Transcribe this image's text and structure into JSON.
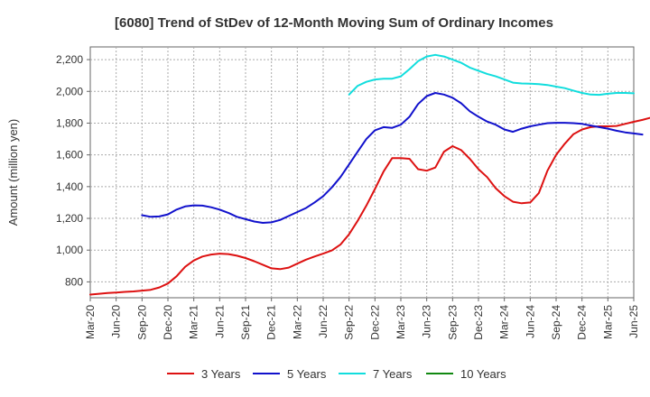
{
  "chart_data": {
    "type": "line",
    "title": "[6080]  Trend of StDev of 12-Month Moving Sum of Ordinary Incomes",
    "xlabel": "",
    "ylabel": "Amount (million yen)",
    "ylim": [
      700,
      2280
    ],
    "yticks": [
      800,
      1000,
      1200,
      1400,
      1600,
      1800,
      2000,
      2200
    ],
    "ytick_labels": [
      "800",
      "1,000",
      "1,200",
      "1,400",
      "1,600",
      "1,800",
      "2,000",
      "2,200"
    ],
    "x_start": "Mar-20",
    "x_end": "Jun-25",
    "xtick_labels": [
      "Mar-20",
      "Jun-20",
      "Sep-20",
      "Dec-20",
      "Mar-21",
      "Jun-21",
      "Sep-21",
      "Dec-21",
      "Mar-22",
      "Jun-22",
      "Sep-22",
      "Dec-22",
      "Mar-23",
      "Jun-23",
      "Sep-23",
      "Dec-23",
      "Mar-24",
      "Jun-24",
      "Sep-24",
      "Dec-24",
      "Mar-25",
      "Jun-25"
    ],
    "grid": true,
    "legend_position": "bottom",
    "series": [
      {
        "name": "3 Years",
        "color": "#dd1111",
        "start_month_index": 0,
        "values": [
          720,
          725,
          730,
          733,
          737,
          740,
          745,
          750,
          765,
          790,
          835,
          895,
          935,
          960,
          972,
          978,
          975,
          965,
          950,
          930,
          908,
          885,
          880,
          890,
          915,
          940,
          960,
          978,
          998,
          1035,
          1100,
          1185,
          1280,
          1385,
          1495,
          1580,
          1580,
          1575,
          1510,
          1500,
          1520,
          1620,
          1655,
          1630,
          1575,
          1510,
          1460,
          1390,
          1340,
          1305,
          1295,
          1300,
          1360,
          1500,
          1600,
          1670,
          1730,
          1760,
          1775,
          1780,
          1780,
          1782,
          1795,
          1808,
          1820,
          1835
        ]
      },
      {
        "name": "5 Years",
        "color": "#1111cc",
        "start_month_index": 6,
        "values": [
          1220,
          1210,
          1212,
          1225,
          1255,
          1275,
          1282,
          1280,
          1270,
          1255,
          1235,
          1210,
          1195,
          1180,
          1172,
          1175,
          1190,
          1215,
          1240,
          1265,
          1300,
          1340,
          1395,
          1460,
          1540,
          1620,
          1700,
          1755,
          1775,
          1770,
          1790,
          1840,
          1920,
          1970,
          1990,
          1980,
          1960,
          1925,
          1875,
          1840,
          1810,
          1790,
          1760,
          1745,
          1765,
          1780,
          1790,
          1800,
          1802,
          1802,
          1800,
          1795,
          1785,
          1775,
          1765,
          1752,
          1742,
          1735,
          1728
        ]
      },
      {
        "name": "7 Years",
        "color": "#11dddd",
        "start_month_index": 30,
        "values": [
          1980,
          2035,
          2060,
          2075,
          2080,
          2080,
          2095,
          2140,
          2190,
          2220,
          2230,
          2220,
          2200,
          2180,
          2150,
          2130,
          2110,
          2095,
          2075,
          2055,
          2050,
          2048,
          2045,
          2040,
          2030,
          2020,
          2005,
          1990,
          1980,
          1978,
          1985,
          1990,
          1990,
          1988
        ]
      },
      {
        "name": "10 Years",
        "color": "#118811",
        "start_month_index": 0,
        "values": []
      }
    ]
  }
}
